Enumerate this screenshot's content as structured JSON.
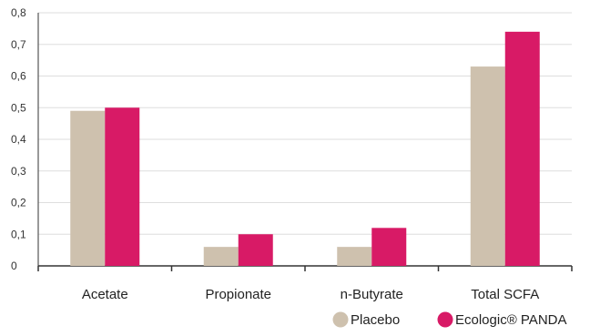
{
  "chart_data": {
    "type": "bar",
    "categories": [
      "Acetate",
      "Propionate",
      "n-Butyrate",
      "Total SCFA"
    ],
    "series": [
      {
        "name": "Placebo",
        "values": [
          0.49,
          0.06,
          0.06,
          0.63
        ],
        "color": "#cec1ae"
      },
      {
        "name": "Ecologic® PANDA",
        "values": [
          0.5,
          0.1,
          0.12,
          0.74
        ],
        "color": "#d81a66"
      }
    ],
    "ylim": [
      0,
      0.8
    ],
    "yticks": [
      0,
      0.1,
      0.2,
      0.3,
      0.4,
      0.5,
      0.6,
      0.7,
      0.8
    ],
    "ytick_labels": [
      "0",
      "0,1",
      "0,2",
      "0,3",
      "0,4",
      "0,5",
      "0,6",
      "0,7",
      "0,8"
    ],
    "grid": true,
    "legend_position": "bottom-right",
    "title": "",
    "xlabel": "",
    "ylabel": ""
  }
}
